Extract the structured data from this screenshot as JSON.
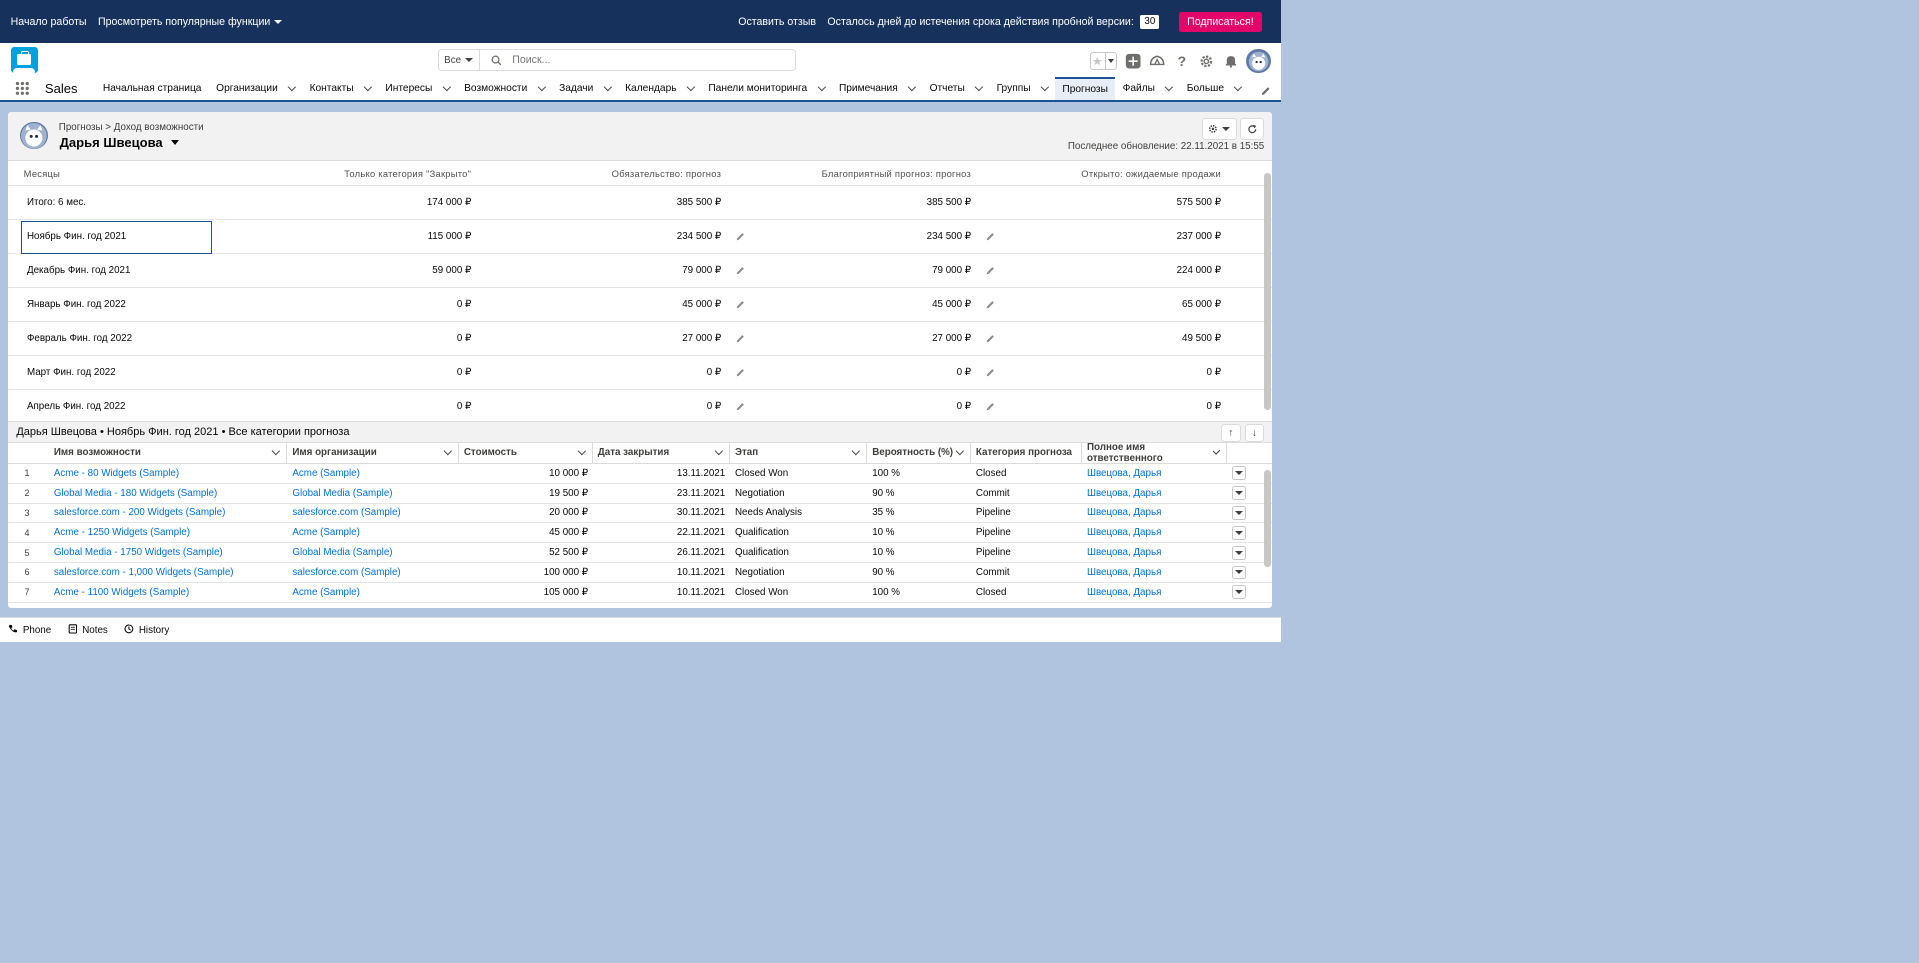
{
  "trial": {
    "start_label": "Начало работы",
    "features_label": "Просмотреть популярные функции",
    "feedback_label": "Оставить отзыв",
    "days_left_label": "Осталось дней до истечения срока действия пробной версии:",
    "days_left_value": "30",
    "subscribe_label": "Подписаться!"
  },
  "search": {
    "scope": "Все",
    "placeholder": "Поиск..."
  },
  "nav": {
    "app_name": "Sales",
    "tabs": [
      {
        "label": "Начальная страница",
        "dropdown": false
      },
      {
        "label": "Организации",
        "dropdown": true
      },
      {
        "label": "Контакты",
        "dropdown": true
      },
      {
        "label": "Интересы",
        "dropdown": true
      },
      {
        "label": "Возможности",
        "dropdown": true
      },
      {
        "label": "Задачи",
        "dropdown": true
      },
      {
        "label": "Календарь",
        "dropdown": true
      },
      {
        "label": "Панели мониторинга",
        "dropdown": true
      },
      {
        "label": "Примечания",
        "dropdown": true
      },
      {
        "label": "Отчеты",
        "dropdown": true
      },
      {
        "label": "Группы",
        "dropdown": true
      },
      {
        "label": "Прогнозы",
        "dropdown": false,
        "active": true
      },
      {
        "label": "Файлы",
        "dropdown": true
      },
      {
        "label": "Больше",
        "dropdown": true
      }
    ]
  },
  "forecast": {
    "breadcrumb": "Прогнозы > Доход возможности",
    "owner_name": "Дарья Швецова",
    "last_updated": "Последнее обновление: 22.11.2021 в 15:55",
    "columns": [
      "Месяцы",
      "Только категория \"Закрыто\"",
      "Обязательство: прогноз",
      "Благоприятный прогноз: прогноз",
      "Открыто: ожидаемые продажи"
    ],
    "rows": [
      {
        "month": "Итого: 6 мес.",
        "closed": "174 000 ₽",
        "commit": "385 500 ₽",
        "best": "385 500 ₽",
        "open": "575 500 ₽",
        "editable": false,
        "selected": false
      },
      {
        "month": "Ноябрь Фин. год 2021",
        "closed": "115 000 ₽",
        "commit": "234 500 ₽",
        "best": "234 500 ₽",
        "open": "237 000 ₽",
        "editable": true,
        "selected": true
      },
      {
        "month": "Декабрь Фин. год 2021",
        "closed": "59 000 ₽",
        "commit": "79 000 ₽",
        "best": "79 000 ₽",
        "open": "224 000 ₽",
        "editable": true,
        "selected": false
      },
      {
        "month": "Январь Фин. год 2022",
        "closed": "0 ₽",
        "commit": "45 000 ₽",
        "best": "45 000 ₽",
        "open": "65 000 ₽",
        "editable": true,
        "selected": false
      },
      {
        "month": "Февраль Фин. год 2022",
        "closed": "0 ₽",
        "commit": "27 000 ₽",
        "best": "27 000 ₽",
        "open": "49 500 ₽",
        "editable": true,
        "selected": false
      },
      {
        "month": "Март Фин. год 2022",
        "closed": "0 ₽",
        "commit": "0 ₽",
        "best": "0 ₽",
        "open": "0 ₽",
        "editable": true,
        "selected": false
      },
      {
        "month": "Апрель Фин. год 2022",
        "closed": "0 ₽",
        "commit": "0 ₽",
        "best": "0 ₽",
        "open": "0 ₽",
        "editable": true,
        "selected": false
      }
    ]
  },
  "opportunities": {
    "title": "Дарья Швецова  •  Ноябрь Фин. год 2021  •  Все категории прогноза",
    "columns": [
      "Имя возможности",
      "Имя организации",
      "Стоимость",
      "Дата закрытия",
      "Этап",
      "Вероятность (%)",
      "Категория прогноза",
      "Полное имя ответственного"
    ],
    "rows": [
      {
        "n": "1",
        "name": "Acme - 80 Widgets (Sample)",
        "org": "Acme (Sample)",
        "amount": "10 000 ₽",
        "close": "13.11.2021",
        "stage": "Closed Won",
        "prob": "100 %",
        "cat": "Closed",
        "owner": "Швецова, Дарья"
      },
      {
        "n": "2",
        "name": "Global Media - 180 Widgets (Sample)",
        "org": "Global Media (Sample)",
        "amount": "19 500 ₽",
        "close": "23.11.2021",
        "stage": "Negotiation",
        "prob": "90 %",
        "cat": "Commit",
        "owner": "Швецова, Дарья"
      },
      {
        "n": "3",
        "name": "salesforce.com - 200 Widgets (Sample)",
        "org": "salesforce.com (Sample)",
        "amount": "20 000 ₽",
        "close": "30.11.2021",
        "stage": "Needs Analysis",
        "prob": "35 %",
        "cat": "Pipeline",
        "owner": "Швецова, Дарья"
      },
      {
        "n": "4",
        "name": "Acme - 1250 Widgets (Sample)",
        "org": "Acme (Sample)",
        "amount": "45 000 ₽",
        "close": "22.11.2021",
        "stage": "Qualification",
        "prob": "10 %",
        "cat": "Pipeline",
        "owner": "Швецова, Дарья"
      },
      {
        "n": "5",
        "name": "Global Media - 1750 Widgets (Sample)",
        "org": "Global Media (Sample)",
        "amount": "52 500 ₽",
        "close": "26.11.2021",
        "stage": "Qualification",
        "prob": "10 %",
        "cat": "Pipeline",
        "owner": "Швецова, Дарья"
      },
      {
        "n": "6",
        "name": "salesforce.com - 1,000 Widgets (Sample)",
        "org": "salesforce.com (Sample)",
        "amount": "100 000 ₽",
        "close": "10.11.2021",
        "stage": "Negotiation",
        "prob": "90 %",
        "cat": "Commit",
        "owner": "Швецова, Дарья"
      },
      {
        "n": "7",
        "name": "Acme - 1100 Widgets (Sample)",
        "org": "Acme (Sample)",
        "amount": "105 000 ₽",
        "close": "10.11.2021",
        "stage": "Closed Won",
        "prob": "100 %",
        "cat": "Closed",
        "owner": "Швецова, Дарья"
      }
    ]
  },
  "utility_bar": [
    {
      "label": "Phone",
      "icon": "phone-icon"
    },
    {
      "label": "Notes",
      "icon": "notes-icon"
    },
    {
      "label": "History",
      "icon": "history-icon"
    }
  ],
  "colors": {
    "banner": "#16325c",
    "subscribe": "#e3066a",
    "link": "#0070d2",
    "brand": "#1b5297"
  }
}
